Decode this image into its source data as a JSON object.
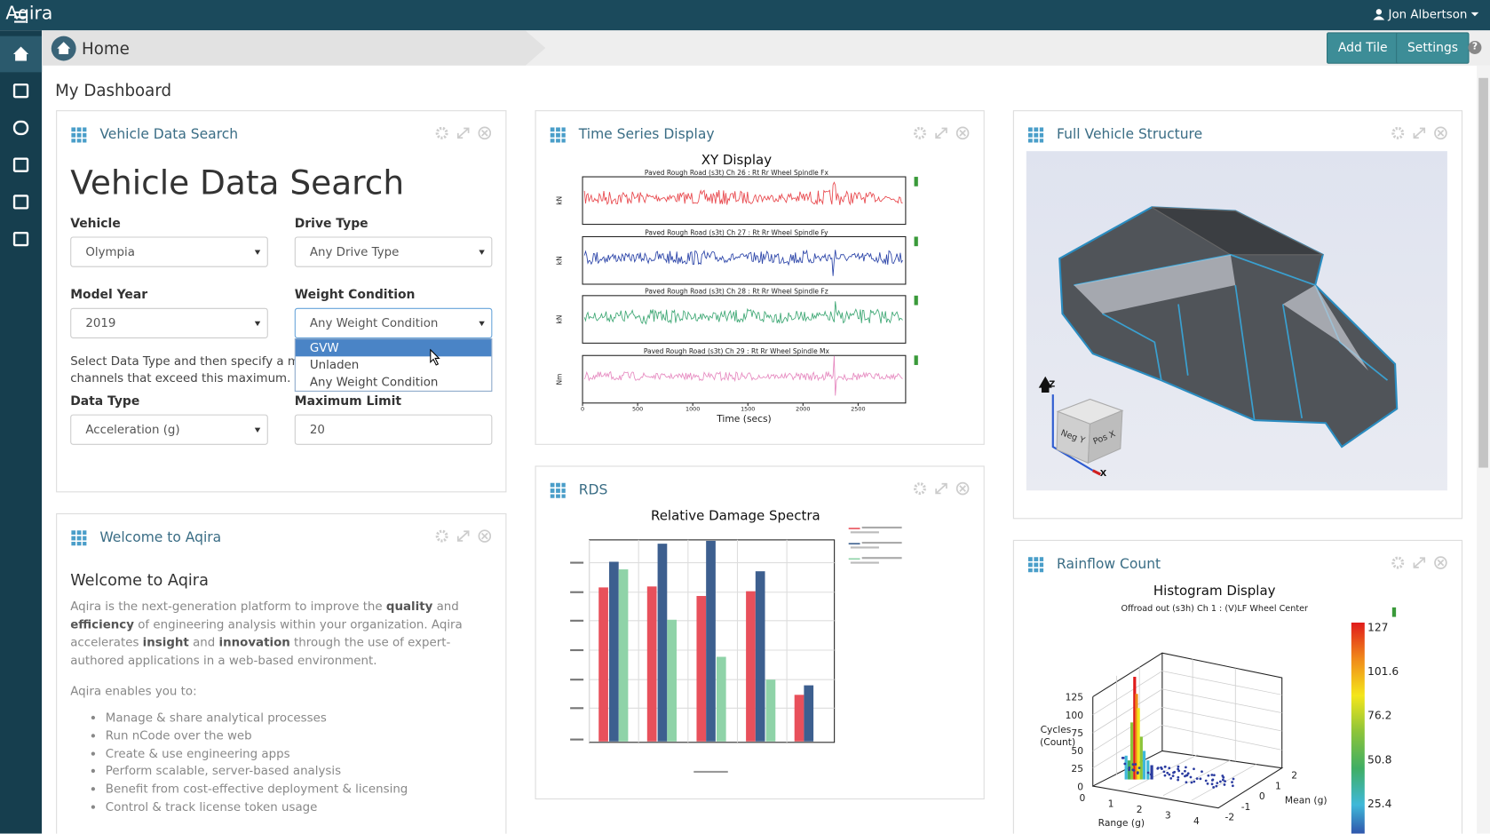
{
  "app": {
    "name": "Aqira",
    "user": "Jon Albertson"
  },
  "toolbar": {
    "breadcrumb": "Home",
    "buttons": [
      "Add Tile",
      "Settings"
    ],
    "help": "?"
  },
  "dashboard_title": "My Dashboard",
  "tiles": {
    "vehicle_search": {
      "title": "Vehicle Data Search",
      "heading": "Vehicle Data Search",
      "fields": [
        {
          "label": "Vehicle",
          "value": "Olympia"
        },
        {
          "label": "Drive Type",
          "value": "Any Drive Type"
        },
        {
          "label": "Model Year",
          "value": "2019"
        },
        {
          "label": "Weight Condition",
          "value": "Any Weight Condition"
        },
        {
          "label": "Data Type",
          "value": "Acceleration (g)"
        },
        {
          "label": "Maximum Limit",
          "value": "20"
        }
      ],
      "hint": [
        "Select Data Type and then specify a maximum",
        "channels that exceed this maximum."
      ],
      "dropdown_options": [
        "GVW",
        "Unladen",
        "Any Weight Condition"
      ]
    },
    "time_series": {
      "title": "Time Series Display",
      "chart_title": "XY Display",
      "channels": [
        "Paved Rough Road (s3t) Ch 26 : Rt Rr Wheel Spindle Fx",
        "Paved Rough Road (s3t) Ch 27 : Rt Rr Wheel Spindle Fy",
        "Paved Rough Road (s3t) Ch 28 : Rt Rr Wheel Spindle Fz",
        "Paved Rough Road (s3t) Ch 29 : Rt Rr Wheel Spindle Mx"
      ],
      "units": [
        "kN",
        "kN",
        "kN",
        "Nm"
      ],
      "x_ticks": [
        "0",
        "500",
        "1000",
        "1500",
        "2000",
        "2500"
      ],
      "x_label": "Time (secs)"
    },
    "full_vehicle": {
      "title": "Full Vehicle Structure",
      "axes": [
        "Z",
        "X"
      ],
      "cube_faces": [
        "Neg Y",
        "Pos X"
      ]
    },
    "welcome": {
      "title": "Welcome to Aqira",
      "heading": "Welcome to Aqira",
      "paragraph": [
        {
          "text": "Aqira is the next-generation platform to improve the ",
          "bold": false
        },
        {
          "text": "quality",
          "bold": true
        },
        {
          "text": " and ",
          "bold": false
        },
        {
          "text": "efficiency",
          "bold": true
        },
        {
          "text": " of engineering analysis within your organization. Aqira accelerates ",
          "bold": false
        },
        {
          "text": "insight",
          "bold": true
        },
        {
          "text": " and ",
          "bold": false
        },
        {
          "text": "innovation",
          "bold": true
        },
        {
          "text": " through the use of expert-authored applications in a web-based environment.",
          "bold": false
        }
      ],
      "intro": "Aqira enables you to:",
      "bullets": [
        "Manage & share analytical processes",
        "Run nCode over the web",
        "Create & use engineering apps",
        "Perform scalable, server-based analysis",
        "Benefit from cost-effective deployment & licensing",
        "Control & track license token usage"
      ]
    },
    "rds": {
      "title": "RDS",
      "chart_title": "Relative Damage Spectra"
    },
    "rainflow": {
      "title": "Rainflow Count",
      "chart_title": "Histogram Display",
      "subtitle": "Offroad out (s3h) Ch 1 : (V)LF Wheel Center",
      "y_label": [
        "Cycles",
        "(Count)"
      ],
      "y_ticks": [
        "0",
        "25",
        "50",
        "75",
        "100",
        "125"
      ],
      "x_label": "Range (g)",
      "x_ticks": [
        "0",
        "1",
        "2",
        "3",
        "4"
      ],
      "z_label": "Mean (g)",
      "z_ticks": [
        "2",
        "1",
        "0",
        "-1",
        "-2"
      ],
      "colorbar_ticks": [
        "127",
        "101.6",
        "76.2",
        "50.8",
        "25.4"
      ]
    }
  }
}
